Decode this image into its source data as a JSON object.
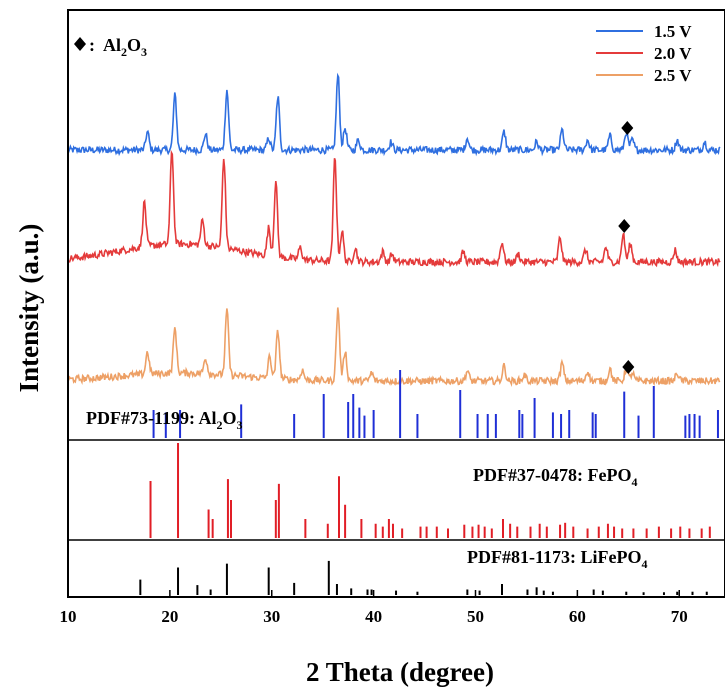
{
  "chart_data": {
    "type": "line",
    "xlabel": "2 Theta (degree)",
    "ylabel": "Intensity (a.u.)",
    "xlim": [
      10,
      74
    ],
    "xticks": [
      10,
      20,
      30,
      40,
      50,
      60,
      70
    ],
    "marker_legend": {
      "symbol": "♦",
      "separator": ":",
      "formula": {
        "base": "Al",
        "sub1": "2",
        "mid": "O",
        "sub2": "3"
      }
    },
    "series": [
      {
        "name": "1.5 V",
        "color": "#2f6fe0",
        "baseline": 150,
        "noise": 3.5,
        "hump": 0,
        "peaks": [
          [
            17.8,
            18
          ],
          [
            20.5,
            55
          ],
          [
            23.5,
            16
          ],
          [
            25.6,
            60
          ],
          [
            29.7,
            12
          ],
          [
            30.6,
            53
          ],
          [
            36.5,
            75
          ],
          [
            37.2,
            22
          ],
          [
            38.5,
            10
          ],
          [
            41.7,
            8
          ],
          [
            49.2,
            12
          ],
          [
            52.8,
            18
          ],
          [
            56.0,
            8
          ],
          [
            58.5,
            20
          ],
          [
            61.0,
            10
          ],
          [
            63.2,
            14
          ],
          [
            64.8,
            18
          ],
          [
            65.4,
            10
          ],
          [
            69.8,
            10
          ],
          [
            72.5,
            8
          ]
        ],
        "diamond_x": 64.9,
        "diamond_offset": 22
      },
      {
        "name": "2.0 V",
        "color": "#e43b3b",
        "baseline": 262,
        "noise": 3.5,
        "hump": 18,
        "peaks": [
          [
            17.5,
            45
          ],
          [
            20.2,
            95
          ],
          [
            23.2,
            25
          ],
          [
            25.3,
            90
          ],
          [
            29.7,
            28
          ],
          [
            30.4,
            75
          ],
          [
            32.8,
            12
          ],
          [
            36.2,
            105
          ],
          [
            36.9,
            30
          ],
          [
            38.2,
            14
          ],
          [
            40.9,
            10
          ],
          [
            41.8,
            8
          ],
          [
            48.8,
            10
          ],
          [
            52.6,
            20
          ],
          [
            54.2,
            8
          ],
          [
            58.3,
            24
          ],
          [
            60.8,
            12
          ],
          [
            62.8,
            15
          ],
          [
            64.5,
            28
          ],
          [
            65.2,
            18
          ],
          [
            69.6,
            12
          ]
        ],
        "diamond_x": 64.6,
        "diamond_offset": 36
      },
      {
        "name": "2.5 V",
        "color": "#eda066",
        "baseline": 381,
        "noise": 3.5,
        "hump": 8,
        "peaks": [
          [
            17.8,
            22
          ],
          [
            20.5,
            45
          ],
          [
            23.5,
            16
          ],
          [
            25.6,
            65
          ],
          [
            29.8,
            22
          ],
          [
            30.6,
            48
          ],
          [
            33.0,
            10
          ],
          [
            36.5,
            72
          ],
          [
            37.2,
            30
          ],
          [
            39.8,
            8
          ],
          [
            49.2,
            10
          ],
          [
            52.8,
            15
          ],
          [
            54.8,
            6
          ],
          [
            58.5,
            18
          ],
          [
            61.0,
            10
          ],
          [
            63.2,
            12
          ],
          [
            64.8,
            12
          ],
          [
            65.4,
            8
          ],
          [
            69.8,
            8
          ]
        ],
        "diamond_x": 65.0,
        "diamond_offset": 14
      }
    ],
    "references": [
      {
        "label": "PDF#73-1199: ",
        "formula": {
          "base": "Al",
          "sub1": "2",
          "mid": "O",
          "sub2": "3"
        },
        "color": "#1f2fd6",
        "peaks": [
          [
            18.4,
            0.35
          ],
          [
            19.6,
            0.32
          ],
          [
            21.0,
            0.35
          ],
          [
            27.0,
            0.42
          ],
          [
            32.2,
            0.3
          ],
          [
            35.1,
            0.55
          ],
          [
            37.5,
            0.45
          ],
          [
            38.0,
            0.55
          ],
          [
            38.6,
            0.38
          ],
          [
            39.1,
            0.28
          ],
          [
            40.0,
            0.35
          ],
          [
            42.6,
            0.85
          ],
          [
            44.3,
            0.3
          ],
          [
            48.5,
            0.6
          ],
          [
            50.2,
            0.3
          ],
          [
            51.2,
            0.3
          ],
          [
            52.0,
            0.3
          ],
          [
            54.3,
            0.35
          ],
          [
            54.6,
            0.3
          ],
          [
            55.8,
            0.5
          ],
          [
            57.6,
            0.32
          ],
          [
            58.4,
            0.3
          ],
          [
            59.2,
            0.35
          ],
          [
            61.5,
            0.32
          ],
          [
            61.8,
            0.3
          ],
          [
            64.6,
            0.58
          ],
          [
            66.0,
            0.28
          ],
          [
            67.5,
            0.65
          ],
          [
            70.6,
            0.28
          ],
          [
            71.0,
            0.3
          ],
          [
            71.5,
            0.3
          ],
          [
            72.0,
            0.28
          ],
          [
            73.8,
            0.35
          ]
        ]
      },
      {
        "label": "PDF#37-0478: ",
        "formula": {
          "base": "FePO",
          "sub1": "4",
          "mid": "",
          "sub2": ""
        },
        "color": "#e11e26",
        "peaks": [
          [
            18.1,
            0.6
          ],
          [
            20.8,
            1.0
          ],
          [
            23.8,
            0.3
          ],
          [
            24.2,
            0.2
          ],
          [
            25.7,
            0.62
          ],
          [
            26.0,
            0.4
          ],
          [
            30.4,
            0.4
          ],
          [
            30.7,
            0.57
          ],
          [
            33.3,
            0.2
          ],
          [
            35.5,
            0.15
          ],
          [
            36.6,
            0.65
          ],
          [
            37.2,
            0.35
          ],
          [
            38.8,
            0.2
          ],
          [
            40.2,
            0.15
          ],
          [
            40.9,
            0.12
          ],
          [
            41.5,
            0.2
          ],
          [
            41.9,
            0.15
          ],
          [
            42.8,
            0.1
          ],
          [
            44.6,
            0.12
          ],
          [
            45.2,
            0.12
          ],
          [
            46.2,
            0.12
          ],
          [
            47.3,
            0.1
          ],
          [
            48.9,
            0.14
          ],
          [
            49.7,
            0.12
          ],
          [
            50.3,
            0.14
          ],
          [
            50.9,
            0.12
          ],
          [
            51.6,
            0.1
          ],
          [
            52.7,
            0.2
          ],
          [
            53.4,
            0.15
          ],
          [
            54.1,
            0.12
          ],
          [
            55.4,
            0.12
          ],
          [
            56.3,
            0.15
          ],
          [
            57.0,
            0.12
          ],
          [
            58.3,
            0.14
          ],
          [
            58.8,
            0.16
          ],
          [
            59.6,
            0.12
          ],
          [
            61.0,
            0.1
          ],
          [
            62.1,
            0.12
          ],
          [
            63.0,
            0.15
          ],
          [
            63.6,
            0.12
          ],
          [
            64.4,
            0.1
          ],
          [
            65.5,
            0.1
          ],
          [
            66.8,
            0.1
          ],
          [
            68.0,
            0.12
          ],
          [
            69.2,
            0.1
          ],
          [
            70.1,
            0.12
          ],
          [
            71.0,
            0.1
          ],
          [
            72.2,
            0.1
          ],
          [
            73.0,
            0.12
          ]
        ]
      },
      {
        "label": "PDF#81-1173: ",
        "formula": {
          "base": "LiFePO",
          "sub1": "4",
          "mid": "",
          "sub2": ""
        },
        "color": "#000000",
        "peaks": [
          [
            17.1,
            0.28
          ],
          [
            20.8,
            0.5
          ],
          [
            22.7,
            0.18
          ],
          [
            24.0,
            0.1
          ],
          [
            25.6,
            0.57
          ],
          [
            29.7,
            0.5
          ],
          [
            32.2,
            0.22
          ],
          [
            35.6,
            0.62
          ],
          [
            36.4,
            0.2
          ],
          [
            37.8,
            0.12
          ],
          [
            39.4,
            0.1
          ],
          [
            39.8,
            0.1
          ],
          [
            42.2,
            0.08
          ],
          [
            44.3,
            0.06
          ],
          [
            49.2,
            0.1
          ],
          [
            50.4,
            0.08
          ],
          [
            52.6,
            0.2
          ],
          [
            55.1,
            0.1
          ],
          [
            56.0,
            0.14
          ],
          [
            56.7,
            0.08
          ],
          [
            57.6,
            0.06
          ],
          [
            61.6,
            0.1
          ],
          [
            62.5,
            0.08
          ],
          [
            64.8,
            0.06
          ],
          [
            66.5,
            0.05
          ],
          [
            68.5,
            0.05
          ],
          [
            69.8,
            0.06
          ],
          [
            71.3,
            0.06
          ],
          [
            72.7,
            0.06
          ]
        ]
      }
    ]
  }
}
